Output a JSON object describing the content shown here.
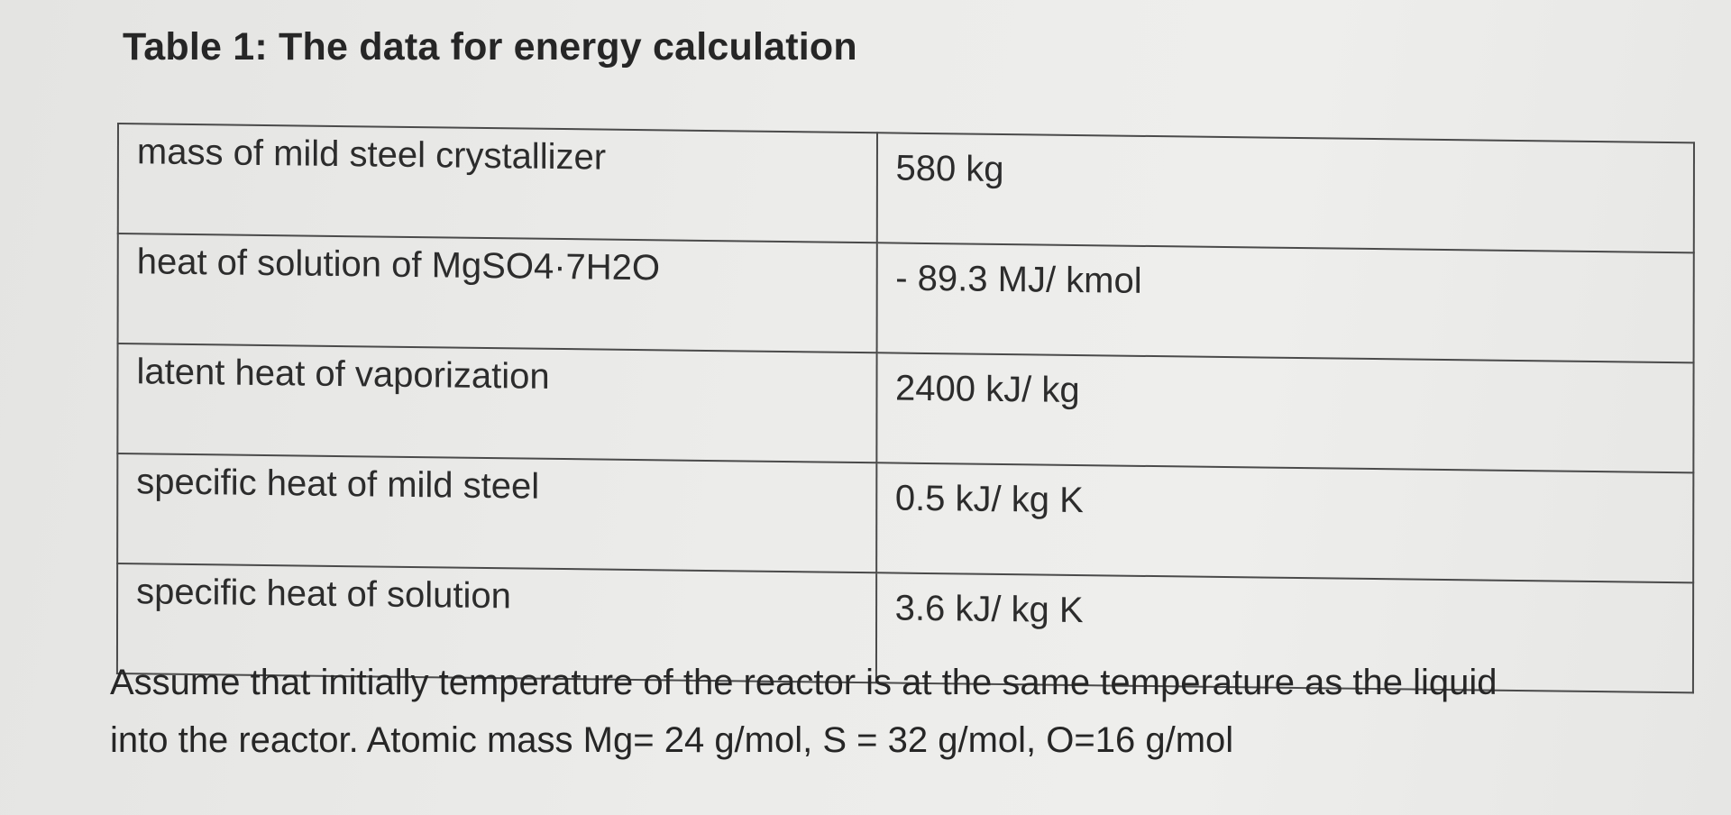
{
  "title": "Table 1: The data for energy calculation",
  "table": {
    "rows": [
      {
        "label": "mass of mild steel crystallizer",
        "value": "580 kg"
      },
      {
        "label": "heat of solution of MgSO4·7H2O",
        "value": "- 89.3 MJ/ kmol"
      },
      {
        "label": "latent heat of vaporization",
        "value": "2400 kJ/ kg"
      },
      {
        "label": "specific heat of mild steel",
        "value": "0.5 kJ/ kg K"
      },
      {
        "label": "specific heat of solution",
        "value": "3.6 kJ/ kg K"
      }
    ]
  },
  "note": {
    "line1": "Assume that initially temperature of the reactor is at the same temperature as the liquid",
    "line2": "into the reactor. Atomic mass Mg= 24 g/mol, S = 32 g/mol, O=16 g/mol"
  }
}
